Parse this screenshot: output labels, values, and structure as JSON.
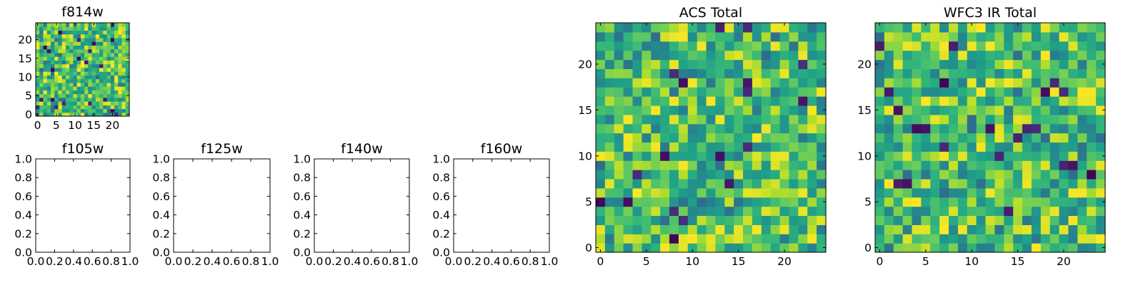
{
  "chart_data": [
    {
      "id": "f814w",
      "type": "heatmap",
      "title": "f814w",
      "nrows": 25,
      "ncols": 25,
      "xlim": [
        -0.5,
        24.5
      ],
      "ylim": [
        -0.5,
        24.5
      ],
      "xticks": [
        0,
        5,
        10,
        15,
        20
      ],
      "xtick_labels": [
        "0",
        "5",
        "10",
        "15",
        "20"
      ],
      "yticks": [
        0,
        5,
        10,
        15,
        20
      ],
      "ytick_labels": [
        "0",
        "5",
        "10",
        "15",
        "20"
      ],
      "colormap": "viridis",
      "seed": 11
    },
    {
      "id": "f105w",
      "type": "heatmap",
      "title": "f105w",
      "empty": true,
      "xlim": [
        0,
        1
      ],
      "ylim": [
        0,
        1
      ],
      "xticks": [
        0,
        0.2,
        0.4,
        0.6,
        0.8,
        1.0
      ],
      "xtick_labels": [
        "0.0",
        "0.2",
        "0.4",
        "0.6",
        "0.8",
        "1.0"
      ],
      "yticks": [
        0,
        0.2,
        0.4,
        0.6,
        0.8,
        1.0
      ],
      "ytick_labels": [
        "0.0",
        "0.2",
        "0.4",
        "0.6",
        "0.8",
        "1.0"
      ]
    },
    {
      "id": "f125w",
      "type": "heatmap",
      "title": "f125w",
      "empty": true,
      "xlim": [
        0,
        1
      ],
      "ylim": [
        0,
        1
      ],
      "xticks": [
        0,
        0.2,
        0.4,
        0.6,
        0.8,
        1.0
      ],
      "xtick_labels": [
        "0.0",
        "0.2",
        "0.4",
        "0.6",
        "0.8",
        "1.0"
      ],
      "yticks": [
        0,
        0.2,
        0.4,
        0.6,
        0.8,
        1.0
      ],
      "ytick_labels": [
        "0.0",
        "0.2",
        "0.4",
        "0.6",
        "0.8",
        "1.0"
      ]
    },
    {
      "id": "f140w",
      "type": "heatmap",
      "title": "f140w",
      "empty": true,
      "xlim": [
        0,
        1
      ],
      "ylim": [
        0,
        1
      ],
      "xticks": [
        0,
        0.2,
        0.4,
        0.6,
        0.8,
        1.0
      ],
      "xtick_labels": [
        "0.0",
        "0.2",
        "0.4",
        "0.6",
        "0.8",
        "1.0"
      ],
      "yticks": [
        0,
        0.2,
        0.4,
        0.6,
        0.8,
        1.0
      ],
      "ytick_labels": [
        "0.0",
        "0.2",
        "0.4",
        "0.6",
        "0.8",
        "1.0"
      ]
    },
    {
      "id": "f160w",
      "type": "heatmap",
      "title": "f160w",
      "empty": true,
      "xlim": [
        0,
        1
      ],
      "ylim": [
        0,
        1
      ],
      "xticks": [
        0,
        0.2,
        0.4,
        0.6,
        0.8,
        1.0
      ],
      "xtick_labels": [
        "0.0",
        "0.2",
        "0.4",
        "0.6",
        "0.8",
        "1.0"
      ],
      "yticks": [
        0,
        0.2,
        0.4,
        0.6,
        0.8,
        1.0
      ],
      "ytick_labels": [
        "0.0",
        "0.2",
        "0.4",
        "0.6",
        "0.8",
        "1.0"
      ]
    },
    {
      "id": "acs-total",
      "type": "heatmap",
      "title": "ACS Total",
      "nrows": 25,
      "ncols": 25,
      "xlim": [
        -0.5,
        24.5
      ],
      "ylim": [
        -0.5,
        24.5
      ],
      "xticks": [
        0,
        5,
        10,
        15,
        20
      ],
      "xtick_labels": [
        "0",
        "5",
        "10",
        "15",
        "20"
      ],
      "yticks": [
        0,
        5,
        10,
        15,
        20
      ],
      "ytick_labels": [
        "0",
        "5",
        "10",
        "15",
        "20"
      ],
      "colormap": "viridis",
      "seed": 37
    },
    {
      "id": "wfc3-ir-total",
      "type": "heatmap",
      "title": "WFC3 IR Total",
      "nrows": 25,
      "ncols": 25,
      "xlim": [
        -0.5,
        24.5
      ],
      "ylim": [
        -0.5,
        24.5
      ],
      "xticks": [
        0,
        5,
        10,
        15,
        20
      ],
      "xtick_labels": [
        "0",
        "5",
        "10",
        "15",
        "20"
      ],
      "yticks": [
        0,
        5,
        10,
        15,
        20
      ],
      "ytick_labels": [
        "0",
        "5",
        "10",
        "15",
        "20"
      ],
      "colormap": "viridis",
      "seed": 73
    }
  ]
}
